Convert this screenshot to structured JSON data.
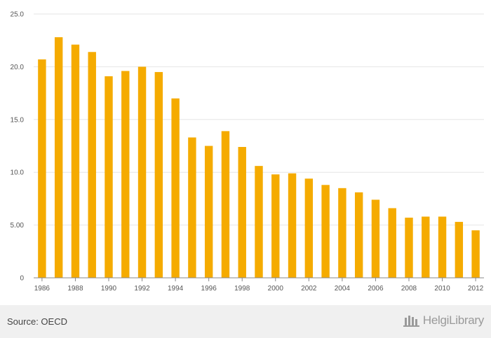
{
  "chart_data": {
    "type": "bar",
    "title": "",
    "xlabel": "",
    "ylabel": "",
    "ylim": [
      0,
      25
    ],
    "yticks": [
      "0",
      "5.00",
      "10.0",
      "15.0",
      "20.0",
      "25.0"
    ],
    "ytick_values": [
      0,
      5,
      10,
      15,
      20,
      25
    ],
    "xtick_labels": [
      "1986",
      "1988",
      "1990",
      "1992",
      "1994",
      "1996",
      "1998",
      "2000",
      "2002",
      "2004",
      "2006",
      "2008",
      "2010",
      "2012"
    ],
    "categories": [
      "1986",
      "1987",
      "1988",
      "1989",
      "1990",
      "1991",
      "1992",
      "1993",
      "1994",
      "1995",
      "1996",
      "1997",
      "1998",
      "1999",
      "2000",
      "2001",
      "2002",
      "2003",
      "2004",
      "2005",
      "2006",
      "2007",
      "2008",
      "2009",
      "2010",
      "2011",
      "2012"
    ],
    "values": [
      20.7,
      22.8,
      22.1,
      21.4,
      19.1,
      19.6,
      20.0,
      19.5,
      17.0,
      13.3,
      12.5,
      13.9,
      12.4,
      10.6,
      9.8,
      9.9,
      9.4,
      8.8,
      8.5,
      8.1,
      7.4,
      6.6,
      5.7,
      5.8,
      5.8,
      5.3,
      4.5
    ],
    "grid": true,
    "bar_color": "#f5ab00"
  },
  "footer": {
    "source": "Source: OECD",
    "logo_text": "HelgiLibrary",
    "logo_icon": "library-icon"
  }
}
